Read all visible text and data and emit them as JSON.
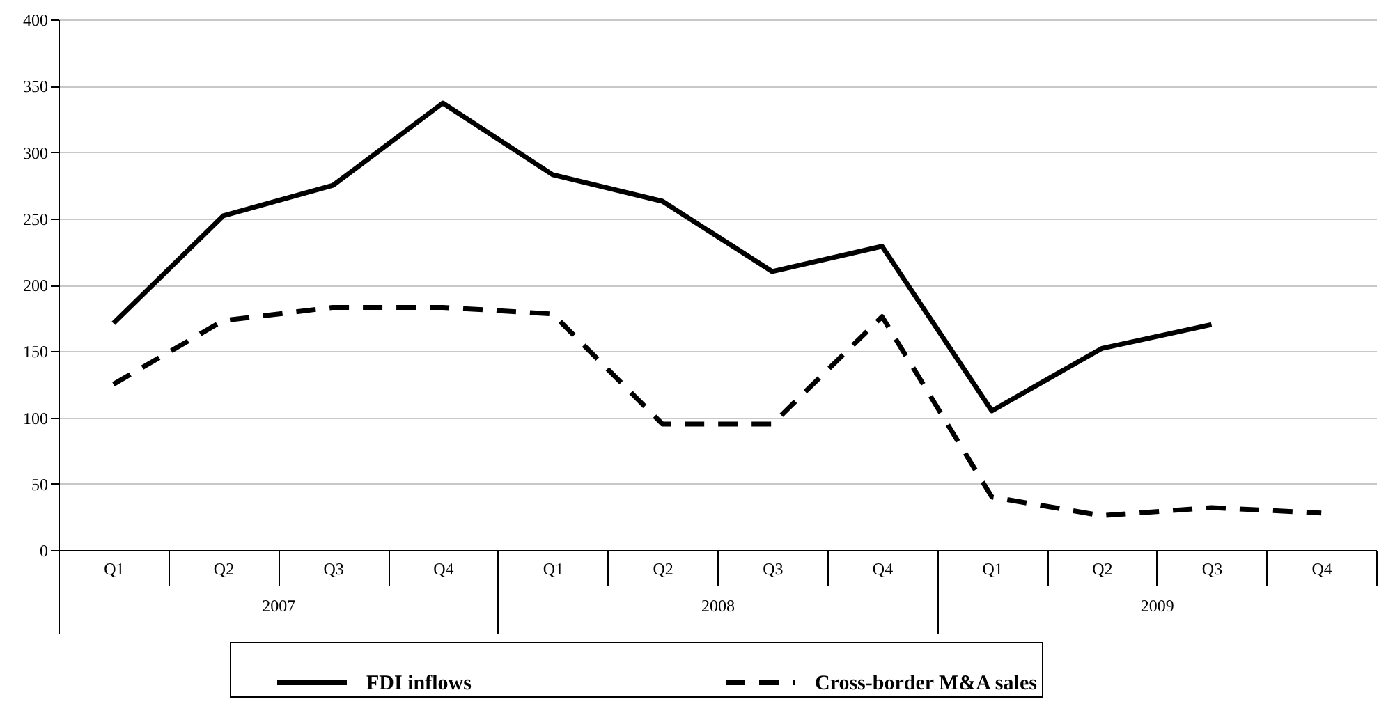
{
  "chart_data": {
    "type": "line",
    "categories": [
      "Q1",
      "Q2",
      "Q3",
      "Q4",
      "Q1",
      "Q2",
      "Q3",
      "Q4",
      "Q1",
      "Q2",
      "Q3",
      "Q4"
    ],
    "annotations": [
      "2007",
      "2008",
      "2009"
    ],
    "series": [
      {
        "name": "FDI inflows",
        "color": "#000000",
        "line_style": "solid",
        "values": [
          171,
          252,
          275,
          337,
          283,
          263,
          210,
          229,
          105,
          152,
          170,
          null
        ]
      },
      {
        "name": "Cross-border M&A sales",
        "color": "#000000",
        "line_style": "dashed",
        "values": [
          125,
          173,
          183,
          183,
          178,
          95,
          95,
          176,
          40,
          26,
          32,
          28
        ]
      }
    ],
    "ylim": [
      0,
      400
    ],
    "yticks": [
      0,
      50,
      100,
      150,
      200,
      250,
      300,
      350,
      400
    ],
    "grid": "y",
    "legend": "bottom"
  }
}
